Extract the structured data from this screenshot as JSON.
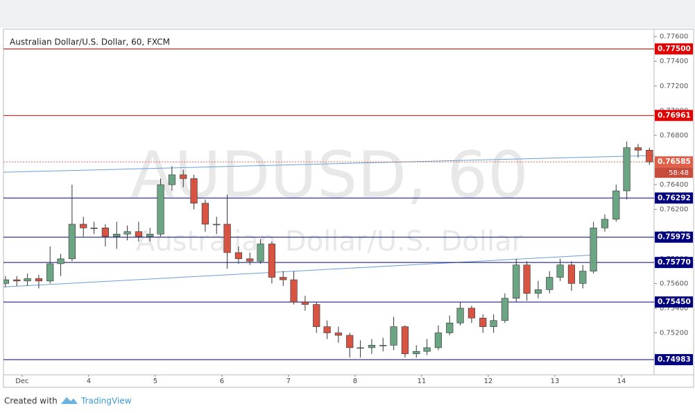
{
  "chart_data": {
    "type": "candlestick",
    "title": "Australian Dollar/U.S. Dollar, 60, FXCM",
    "watermark": "AUDUSD, 60",
    "watermark_subtitle": "Australian Dollar/U.S. Dollar",
    "countdown": "58:48",
    "footer": {
      "text": "Created with",
      "brand": "TradingView"
    },
    "up_color": "#6ba583",
    "down_color": "#d75442",
    "grid": false,
    "xlim": [
      -0.28,
      9.49
    ],
    "ylim": [
      0.7486,
      0.7766
    ],
    "xticks": [
      {
        "value": 0,
        "label": "Dec"
      },
      {
        "value": 1,
        "label": "4"
      },
      {
        "value": 2,
        "label": "5"
      },
      {
        "value": 3,
        "label": "6"
      },
      {
        "value": 4,
        "label": "7"
      },
      {
        "value": 5,
        "label": "8"
      },
      {
        "value": 6,
        "label": "11"
      },
      {
        "value": 7,
        "label": "12"
      },
      {
        "value": 8,
        "label": "13"
      },
      {
        "value": 9,
        "label": "14"
      }
    ],
    "yticks": [
      {
        "value": 0.776,
        "label": "0.77600"
      },
      {
        "value": 0.774,
        "label": "0.77400"
      },
      {
        "value": 0.772,
        "label": "0.77200"
      },
      {
        "value": 0.77,
        "label": "0.77000"
      },
      {
        "value": 0.768,
        "label": "0.76800"
      },
      {
        "value": 0.766,
        "label": "0.76600"
      },
      {
        "value": 0.764,
        "label": "0.76400"
      },
      {
        "value": 0.762,
        "label": "0.76200"
      },
      {
        "value": 0.76,
        "label": "0.76000"
      },
      {
        "value": 0.758,
        "label": "0.75800"
      },
      {
        "value": 0.756,
        "label": "0.75600"
      },
      {
        "value": 0.754,
        "label": "0.75400"
      },
      {
        "value": 0.752,
        "label": "0.75200"
      },
      {
        "value": 0.75,
        "label": "0.75000"
      }
    ],
    "levels": [
      {
        "value": 0.775,
        "label": "0.77500",
        "color": "#e00000",
        "style": "solid"
      },
      {
        "value": 0.76961,
        "label": "0.76961",
        "color": "#e00000",
        "style": "solid"
      },
      {
        "value": 0.76585,
        "label": "0.76585",
        "color": "#e0604a",
        "style": "dotted"
      },
      {
        "value": 0.76292,
        "label": "0.76292",
        "color": "#00007f",
        "style": "solid"
      },
      {
        "value": 0.75975,
        "label": "0.75975",
        "color": "#00007f",
        "style": "solid"
      },
      {
        "value": 0.7577,
        "label": "0.75770",
        "color": "#00007f",
        "style": "solid"
      },
      {
        "value": 0.7545,
        "label": "0.75450",
        "color": "#00007f",
        "style": "solid"
      },
      {
        "value": 0.74983,
        "label": "0.74983",
        "color": "#00007f",
        "style": "solid"
      }
    ],
    "trendlines": [
      {
        "x": [
          -0.28,
          9.49
        ],
        "y": [
          0.76501,
          0.76637
        ],
        "color": "#6a9fd4"
      },
      {
        "x": [
          -0.28,
          8.6
        ],
        "y": [
          0.75572,
          0.75831
        ],
        "color": "#6a9fd4"
      }
    ],
    "x": [
      -0.25,
      -0.08,
      0.08,
      0.25,
      0.42,
      0.58,
      0.75,
      0.92,
      1.08,
      1.25,
      1.42,
      1.58,
      1.75,
      1.92,
      2.08,
      2.25,
      2.42,
      2.58,
      2.75,
      2.92,
      3.08,
      3.25,
      3.42,
      3.58,
      3.75,
      3.92,
      4.08,
      4.25,
      4.42,
      4.58,
      4.75,
      4.92,
      5.08,
      5.25,
      5.42,
      5.58,
      5.75,
      5.92,
      6.08,
      6.25,
      6.42,
      6.58,
      6.75,
      6.92,
      7.08,
      7.25,
      7.42,
      7.58,
      7.75,
      7.92,
      8.08,
      8.25,
      8.42,
      8.58,
      8.75,
      8.92,
      9.08,
      9.25,
      9.42
    ],
    "ohlc": [
      [
        0.756,
        0.7566,
        0.7557,
        0.7563
      ],
      [
        0.7563,
        0.7566,
        0.7558,
        0.7562
      ],
      [
        0.7562,
        0.7568,
        0.7558,
        0.7564
      ],
      [
        0.7564,
        0.7567,
        0.7556,
        0.7562
      ],
      [
        0.7562,
        0.759,
        0.756,
        0.7576
      ],
      [
        0.7576,
        0.7584,
        0.7566,
        0.758
      ],
      [
        0.758,
        0.764,
        0.7578,
        0.7608
      ],
      [
        0.7608,
        0.7614,
        0.7598,
        0.7605
      ],
      [
        0.7605,
        0.761,
        0.76,
        0.7605
      ],
      [
        0.7605,
        0.7608,
        0.759,
        0.7598
      ],
      [
        0.7598,
        0.761,
        0.7588,
        0.76
      ],
      [
        0.76,
        0.7607,
        0.7595,
        0.7602
      ],
      [
        0.7602,
        0.761,
        0.7594,
        0.7598
      ],
      [
        0.7598,
        0.7605,
        0.7594,
        0.76
      ],
      [
        0.76,
        0.7645,
        0.7598,
        0.764
      ],
      [
        0.764,
        0.7655,
        0.7635,
        0.7648
      ],
      [
        0.7648,
        0.7652,
        0.7638,
        0.7645
      ],
      [
        0.7645,
        0.7648,
        0.762,
        0.7625
      ],
      [
        0.7625,
        0.7628,
        0.7602,
        0.7608
      ],
      [
        0.7608,
        0.7614,
        0.76,
        0.7608
      ],
      [
        0.7608,
        0.7632,
        0.7572,
        0.7585
      ],
      [
        0.7585,
        0.759,
        0.7576,
        0.758
      ],
      [
        0.758,
        0.7585,
        0.7575,
        0.7578
      ],
      [
        0.7578,
        0.7596,
        0.7576,
        0.7592
      ],
      [
        0.7592,
        0.7594,
        0.756,
        0.7565
      ],
      [
        0.7565,
        0.757,
        0.7558,
        0.7563
      ],
      [
        0.7563,
        0.757,
        0.7543,
        0.7545
      ],
      [
        0.7545,
        0.755,
        0.7538,
        0.7543
      ],
      [
        0.7543,
        0.7545,
        0.752,
        0.7525
      ],
      [
        0.7525,
        0.753,
        0.7515,
        0.752
      ],
      [
        0.752,
        0.7525,
        0.7512,
        0.7518
      ],
      [
        0.7518,
        0.752,
        0.75,
        0.7508
      ],
      [
        0.7508,
        0.7514,
        0.75,
        0.7508
      ],
      [
        0.7508,
        0.7515,
        0.7503,
        0.751
      ],
      [
        0.751,
        0.7516,
        0.7505,
        0.751
      ],
      [
        0.751,
        0.7533,
        0.7506,
        0.7525
      ],
      [
        0.7525,
        0.7526,
        0.75,
        0.7503
      ],
      [
        0.7503,
        0.751,
        0.75,
        0.7505
      ],
      [
        0.7505,
        0.7515,
        0.7502,
        0.7508
      ],
      [
        0.7508,
        0.7526,
        0.7506,
        0.752
      ],
      [
        0.752,
        0.7534,
        0.7518,
        0.7528
      ],
      [
        0.7528,
        0.7545,
        0.7526,
        0.754
      ],
      [
        0.754,
        0.7542,
        0.7528,
        0.7532
      ],
      [
        0.7532,
        0.7535,
        0.752,
        0.7525
      ],
      [
        0.7525,
        0.7535,
        0.752,
        0.753
      ],
      [
        0.753,
        0.7552,
        0.7528,
        0.7548
      ],
      [
        0.7548,
        0.758,
        0.7545,
        0.7575
      ],
      [
        0.7575,
        0.7578,
        0.7546,
        0.7552
      ],
      [
        0.7552,
        0.7562,
        0.7548,
        0.7555
      ],
      [
        0.7555,
        0.757,
        0.7552,
        0.7565
      ],
      [
        0.7565,
        0.758,
        0.7562,
        0.7575
      ],
      [
        0.7575,
        0.7578,
        0.7554,
        0.756
      ],
      [
        0.756,
        0.7575,
        0.7556,
        0.757
      ],
      [
        0.757,
        0.761,
        0.7568,
        0.7605
      ],
      [
        0.7605,
        0.7616,
        0.7602,
        0.7612
      ],
      [
        0.7612,
        0.764,
        0.761,
        0.7635
      ],
      [
        0.7635,
        0.7675,
        0.7628,
        0.767
      ],
      [
        0.767,
        0.7673,
        0.7662,
        0.7668
      ],
      [
        0.7668,
        0.767,
        0.7656,
        0.76585
      ]
    ]
  }
}
